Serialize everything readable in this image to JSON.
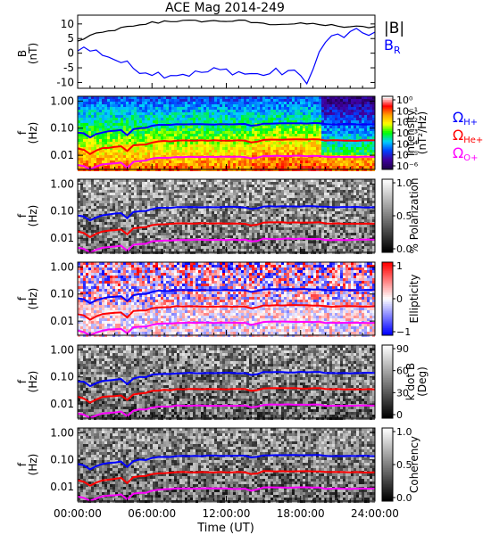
{
  "title": "ACE Mag 2014-249",
  "time_axis": {
    "label": "Time (UT)",
    "ticks": [
      "00:00:00",
      "06:00:00",
      "12:00:00",
      "18:00:00",
      "24:00:00"
    ],
    "range_hours": [
      0,
      24
    ]
  },
  "colors": {
    "B": "#000000",
    "BR": "#0000ff",
    "H": "#0000ff",
    "He": "#ff0000",
    "O": "#ff00ff"
  },
  "legend": {
    "B": "|B|",
    "BR_main": "B",
    "BR_sub": "R",
    "omega": "Ω",
    "H_sub": "H+",
    "He_sub": "He+",
    "O_sub": "O+"
  },
  "chart_data": [
    {
      "type": "line",
      "name": "magnetic-field",
      "ylabel": "B",
      "yunit": "(nT)",
      "ylim": [
        -12,
        13
      ],
      "yticks": [
        "10",
        "5",
        "0",
        "-5",
        "-10"
      ],
      "series": [
        {
          "name": "|B|",
          "x": [
            0,
            0.5,
            1,
            1.5,
            2,
            2.5,
            3,
            3.5,
            4,
            4.5,
            5,
            5.5,
            6,
            6.5,
            7,
            7.5,
            8,
            8.5,
            9,
            9.5,
            10,
            10.5,
            11,
            11.5,
            12,
            12.5,
            13,
            13.5,
            14,
            14.5,
            15,
            15.5,
            16,
            16.5,
            17,
            17.5,
            18,
            18.5,
            19,
            19.5,
            20,
            20.5,
            21,
            21.5,
            22,
            22.5,
            23,
            23.5,
            24
          ],
          "y": [
            4,
            5,
            6,
            6.5,
            7,
            7.5,
            8,
            8.5,
            9,
            9,
            9.5,
            10,
            10.5,
            10.5,
            11,
            11,
            11,
            11,
            11,
            11,
            11,
            11,
            11,
            11,
            11,
            11,
            11,
            11,
            10.5,
            10.5,
            10,
            10,
            10,
            10,
            10,
            10,
            10,
            10,
            10,
            10,
            9.5,
            9.5,
            9,
            9,
            9,
            9,
            9,
            9,
            9
          ]
        },
        {
          "name": "B_R",
          "x": [
            0,
            0.5,
            1,
            1.5,
            2,
            2.5,
            3,
            3.5,
            4,
            4.5,
            5,
            5.5,
            6,
            6.5,
            7,
            7.5,
            8,
            8.5,
            9,
            9.5,
            10,
            10.5,
            11,
            11.5,
            12,
            12.5,
            13,
            13.5,
            14,
            14.5,
            15,
            15.5,
            16,
            16.5,
            17,
            17.5,
            18,
            18.5,
            19,
            19.5,
            20,
            20.5,
            21,
            21.5,
            22,
            22.5,
            23,
            23.5,
            24
          ],
          "y": [
            2,
            1.5,
            1,
            0.5,
            0,
            -1,
            -2,
            -3,
            -4,
            -5,
            -5.5,
            -6,
            -6.5,
            -7,
            -7,
            -7,
            -7,
            -7,
            -7,
            -7,
            -6.5,
            -6.5,
            -6,
            -6,
            -6,
            -6,
            -6.5,
            -7,
            -7,
            -7.5,
            -7,
            -7,
            -6.5,
            -6.5,
            -6,
            -7,
            -8,
            -9,
            -6,
            0,
            4,
            5,
            6,
            6,
            6.5,
            7,
            7,
            7,
            7
          ]
        }
      ]
    },
    {
      "type": "heatmap",
      "name": "power-spectrum",
      "ylabel": "f",
      "yunit": "(Hz)",
      "yscale": "log",
      "ylim": [
        0.003,
        1.5
      ],
      "yticks": [
        "1.00",
        "0.10",
        "0.01"
      ],
      "colorbar": {
        "label": "Intensity",
        "unit": "(nT²/Hz)",
        "ticks": [
          "10⁰",
          "10⁻¹",
          "10⁻²",
          "10⁻³",
          "10⁻⁴",
          "10⁻⁵",
          "10⁻⁶"
        ],
        "colors": [
          "#ffffff",
          "#ff0000",
          "#ffa000",
          "#ffff00",
          "#00ff00",
          "#00d0ff",
          "#0040ff",
          "#4000a0",
          "#200050"
        ]
      }
    },
    {
      "type": "heatmap",
      "name": "polarization",
      "ylabel": "f",
      "yunit": "(Hz)",
      "yscale": "log",
      "ylim": [
        0.003,
        1.5
      ],
      "yticks": [
        "1.00",
        "0.10",
        "0.01"
      ],
      "colorbar": {
        "label": "% Polarization",
        "ticks": [
          "1.0",
          "0.5",
          "0.0"
        ],
        "colors": [
          "#ffffff",
          "#000000"
        ]
      }
    },
    {
      "type": "heatmap",
      "name": "ellipticity",
      "ylabel": "f",
      "yunit": "(Hz)",
      "yscale": "log",
      "ylim": [
        0.003,
        1.5
      ],
      "yticks": [
        "1.00",
        "0.10",
        "0.01"
      ],
      "colorbar": {
        "label": "Ellipticity",
        "ticks": [
          "1",
          "0",
          "−1"
        ],
        "colors": [
          "#ff0000",
          "#ffffff",
          "#0000ff"
        ]
      }
    },
    {
      "type": "heatmap",
      "name": "k-dot-b",
      "ylabel": "f",
      "yunit": "(Hz)",
      "yscale": "log",
      "ylim": [
        0.003,
        1.5
      ],
      "yticks": [
        "1.00",
        "0.10",
        "0.01"
      ],
      "colorbar": {
        "label": "k dot B",
        "unit": "(Deg)",
        "ticks": [
          "90",
          "60",
          "30",
          "0"
        ],
        "colors": [
          "#ffffff",
          "#000000"
        ]
      }
    },
    {
      "type": "heatmap",
      "name": "coherency",
      "ylabel": "f",
      "yunit": "(Hz)",
      "yscale": "log",
      "ylim": [
        0.003,
        1.5
      ],
      "yticks": [
        "1.00",
        "0.10",
        "0.01"
      ],
      "colorbar": {
        "label": "Coherency",
        "ticks": [
          "1.0",
          "0.5",
          "0.0"
        ],
        "colors": [
          "#ffffff",
          "#000000"
        ]
      }
    }
  ],
  "gyrofrequency_lines": {
    "x": [
      0,
      0.5,
      1,
      1.5,
      2,
      2.5,
      3,
      3.5,
      4,
      4.5,
      5,
      5.5,
      6,
      6.5,
      7,
      7.5,
      8,
      8.5,
      9,
      9.5,
      10,
      10.5,
      11,
      11.5,
      12,
      12.5,
      13,
      13.5,
      14,
      14.5,
      15,
      15.5,
      16,
      16.5,
      17,
      17.5,
      18,
      18.5,
      19,
      19.5,
      20,
      20.5,
      21,
      21.5,
      22,
      22.5,
      23,
      23.5,
      24
    ],
    "H": [
      0.07,
      0.065,
      0.045,
      0.06,
      0.07,
      0.075,
      0.08,
      0.085,
      0.055,
      0.09,
      0.1,
      0.1,
      0.12,
      0.13,
      0.13,
      0.13,
      0.14,
      0.14,
      0.14,
      0.14,
      0.14,
      0.14,
      0.14,
      0.14,
      0.14,
      0.14,
      0.14,
      0.14,
      0.12,
      0.13,
      0.15,
      0.15,
      0.15,
      0.15,
      0.15,
      0.15,
      0.15,
      0.15,
      0.15,
      0.15,
      0.14,
      0.14,
      0.14,
      0.14,
      0.14,
      0.14,
      0.14,
      0.14,
      0.14
    ],
    "He": [
      0.018,
      0.016,
      0.011,
      0.015,
      0.018,
      0.019,
      0.02,
      0.021,
      0.014,
      0.023,
      0.025,
      0.025,
      0.03,
      0.032,
      0.033,
      0.033,
      0.035,
      0.035,
      0.035,
      0.035,
      0.035,
      0.035,
      0.035,
      0.035,
      0.035,
      0.035,
      0.035,
      0.035,
      0.03,
      0.032,
      0.038,
      0.038,
      0.038,
      0.038,
      0.038,
      0.038,
      0.038,
      0.038,
      0.038,
      0.038,
      0.035,
      0.035,
      0.035,
      0.035,
      0.035,
      0.035,
      0.035,
      0.035,
      0.035
    ],
    "O": [
      0.0045,
      0.004,
      0.003,
      0.0038,
      0.0045,
      0.0048,
      0.005,
      0.0053,
      0.0035,
      0.0058,
      0.0062,
      0.0062,
      0.0075,
      0.008,
      0.0082,
      0.0082,
      0.0087,
      0.0087,
      0.0087,
      0.0087,
      0.0087,
      0.0087,
      0.0087,
      0.0087,
      0.0087,
      0.0087,
      0.0087,
      0.0087,
      0.0075,
      0.008,
      0.0095,
      0.0095,
      0.0095,
      0.0095,
      0.0095,
      0.0095,
      0.0095,
      0.0095,
      0.0095,
      0.0095,
      0.0087,
      0.0087,
      0.0087,
      0.0087,
      0.0087,
      0.0087,
      0.0087,
      0.0087,
      0.0087
    ]
  }
}
